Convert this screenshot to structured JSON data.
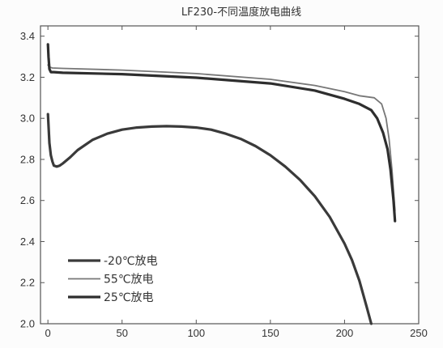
{
  "chart_data": {
    "type": "line",
    "title": "LF230-不同温度放电曲线",
    "xlabel": "",
    "ylabel": "",
    "xlim": [
      -5,
      250
    ],
    "ylim": [
      2.0,
      3.45
    ],
    "xticks": [
      0,
      50,
      100,
      150,
      200,
      250
    ],
    "yticks": [
      2.0,
      2.2,
      2.4,
      2.6,
      2.8,
      3.0,
      3.2,
      3.4
    ],
    "xtick_labels": [
      "0",
      "50",
      "100",
      "150",
      "200",
      "250"
    ],
    "ytick_labels": [
      "2.0",
      "2.2",
      "2.4",
      "2.6",
      "2.8",
      "3.0",
      "3.2",
      "3.4"
    ],
    "grid": false,
    "legend_position": "bottom-left",
    "series": [
      {
        "name": "-20℃放电",
        "color": "#3a3a3a",
        "x": [
          0,
          0.5,
          1,
          2,
          3,
          4,
          6,
          8,
          10,
          15,
          20,
          30,
          40,
          50,
          60,
          70,
          80,
          90,
          100,
          110,
          120,
          130,
          140,
          150,
          160,
          170,
          180,
          190,
          200,
          205,
          210,
          215,
          218
        ],
        "y": [
          3.02,
          2.95,
          2.88,
          2.82,
          2.79,
          2.77,
          2.765,
          2.77,
          2.78,
          2.81,
          2.845,
          2.895,
          2.925,
          2.945,
          2.955,
          2.96,
          2.962,
          2.96,
          2.955,
          2.945,
          2.925,
          2.9,
          2.865,
          2.82,
          2.765,
          2.7,
          2.62,
          2.52,
          2.39,
          2.31,
          2.21,
          2.08,
          2.0
        ]
      },
      {
        "name": "55℃放电",
        "color": "#777777",
        "x": [
          0,
          1,
          3,
          10,
          50,
          100,
          150,
          180,
          200,
          210,
          220,
          225,
          228,
          230,
          232,
          234
        ],
        "y": [
          3.26,
          3.25,
          3.245,
          3.243,
          3.235,
          3.218,
          3.19,
          3.16,
          3.13,
          3.11,
          3.1,
          3.07,
          3.0,
          2.9,
          2.75,
          2.55
        ]
      },
      {
        "name": "25℃放电",
        "color": "#2e2e2e",
        "x": [
          0,
          0.4,
          1,
          2,
          4,
          10,
          50,
          100,
          150,
          180,
          200,
          210,
          218,
          222,
          226,
          229,
          231,
          233,
          234
        ],
        "y": [
          3.36,
          3.3,
          3.24,
          3.225,
          3.225,
          3.222,
          3.215,
          3.198,
          3.17,
          3.135,
          3.095,
          3.07,
          3.04,
          3.0,
          2.93,
          2.85,
          2.75,
          2.6,
          2.5
        ]
      }
    ]
  }
}
